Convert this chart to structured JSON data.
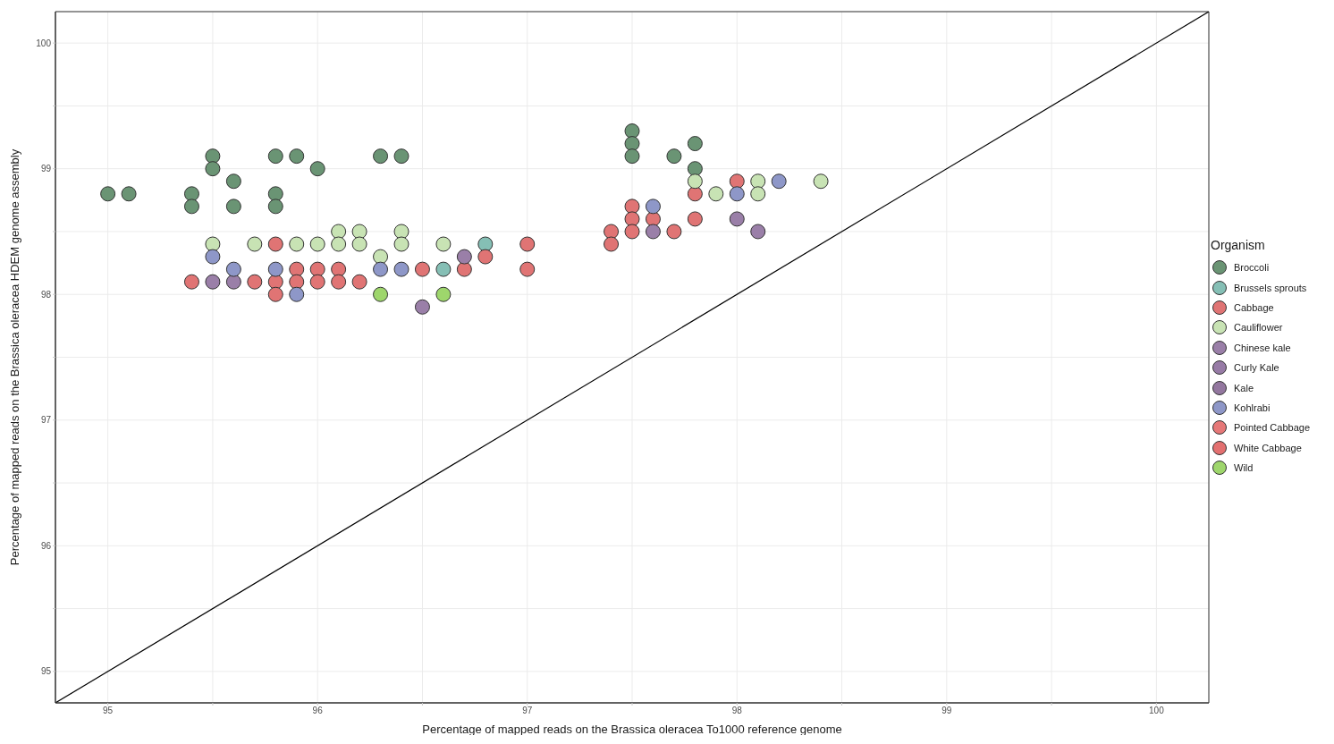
{
  "chart_data": {
    "type": "scatter",
    "xlabel": "Percentage of mapped reads on the Brassica oleracea To1000 reference genome",
    "ylabel": "Percentage of mapped reads on the Brassica oleracea HDEM genome assembly",
    "legend_title": "Organism",
    "xlim": [
      94.75,
      100.25
    ],
    "ylim": [
      94.75,
      100.25
    ],
    "xticks": [
      95,
      {
        "value": 95.5,
        "label": null
      },
      96,
      {
        "value": 96.5,
        "label": null
      },
      97,
      {
        "value": 97.5,
        "label": null
      },
      98,
      {
        "value": 98.5,
        "label": null
      },
      99,
      {
        "value": 99.5,
        "label": null
      },
      100
    ],
    "yticks": [
      95,
      {
        "value": 95.5,
        "label": null
      },
      96,
      {
        "value": 96.5,
        "label": null
      },
      97,
      {
        "value": 97.5,
        "label": null
      },
      98,
      {
        "value": 98.5,
        "label": null
      },
      99,
      {
        "value": 99.5,
        "label": null
      },
      100
    ],
    "grid": true,
    "legend": "right",
    "marker": "circle",
    "series": [
      {
        "name": "Broccoli",
        "color": "#6a9474",
        "x": [
          95.0,
          95.1,
          95.4,
          95.4,
          95.5,
          95.5,
          95.6,
          95.6,
          95.8,
          95.8,
          95.8,
          95.9,
          96.0,
          96.3,
          96.4,
          97.5,
          97.5,
          97.5,
          97.7,
          97.8,
          97.8
        ],
        "values": [
          98.8,
          98.8,
          98.8,
          98.7,
          99.1,
          99.0,
          98.9,
          98.7,
          99.1,
          98.8,
          98.7,
          99.1,
          99.0,
          99.1,
          99.1,
          99.3,
          99.2,
          99.1,
          99.1,
          99.2,
          99.0
        ]
      },
      {
        "name": "Brussels sprouts",
        "color": "#85bfb5",
        "x": [
          96.6,
          96.8
        ],
        "values": [
          98.2,
          98.4
        ]
      },
      {
        "name": "Cabbage",
        "color": "#e07474",
        "x": [
          95.4,
          95.7,
          95.8,
          95.8,
          95.8,
          95.9,
          95.9,
          96.0,
          96.0,
          96.1,
          96.1,
          96.2,
          96.5,
          96.7,
          96.8,
          97.0,
          97.0,
          97.4,
          97.4,
          97.5,
          97.5,
          97.5,
          97.6,
          97.7,
          97.8,
          97.8,
          98.0
        ],
        "values": [
          98.1,
          98.1,
          98.4,
          98.1,
          98.0,
          98.2,
          98.1,
          98.2,
          98.1,
          98.2,
          98.1,
          98.1,
          98.2,
          98.2,
          98.3,
          98.4,
          98.2,
          98.5,
          98.4,
          98.7,
          98.6,
          98.5,
          98.6,
          98.5,
          98.8,
          98.6,
          98.9
        ]
      },
      {
        "name": "Cauliflower",
        "color": "#c8e3b4",
        "x": [
          95.5,
          95.7,
          95.9,
          96.0,
          96.1,
          96.1,
          96.2,
          96.2,
          96.3,
          96.4,
          96.4,
          96.6,
          97.8,
          97.9,
          98.1,
          98.1,
          98.4
        ],
        "values": [
          98.4,
          98.4,
          98.4,
          98.4,
          98.5,
          98.4,
          98.5,
          98.4,
          98.3,
          98.5,
          98.4,
          98.4,
          98.9,
          98.8,
          98.9,
          98.8,
          98.9
        ]
      },
      {
        "name": "Chinese kale",
        "color": "#9a7fa8",
        "x": [
          95.5,
          95.6,
          96.5,
          96.7,
          97.6,
          98.0,
          98.1
        ],
        "values": [
          98.1,
          98.1,
          97.9,
          98.3,
          98.5,
          98.6,
          98.5
        ]
      },
      {
        "name": "Curly Kale",
        "color": "#977ba6"
      },
      {
        "name": "Kale",
        "color": "#93779f"
      },
      {
        "name": "Kohlrabi",
        "color": "#8e97c8",
        "x": [
          95.5,
          95.6,
          95.8,
          95.9,
          96.3,
          96.4,
          97.6,
          98.0,
          98.2
        ],
        "values": [
          98.3,
          98.2,
          98.2,
          98.0,
          98.2,
          98.2,
          98.7,
          98.8,
          98.9
        ]
      },
      {
        "name": "Pointed Cabbage",
        "color": "#e67878"
      },
      {
        "name": "White Cabbage",
        "color": "#e37070"
      },
      {
        "name": "Wild",
        "color": "#9ed66c",
        "x": [
          96.3,
          96.6
        ],
        "values": [
          98.0,
          98.0
        ]
      },
      {
        "type": "line",
        "color": "#000000",
        "marker": "none",
        "line_style": "solid",
        "x": [
          94.75,
          100.25
        ],
        "values": [
          94.75,
          100.25
        ]
      }
    ]
  }
}
